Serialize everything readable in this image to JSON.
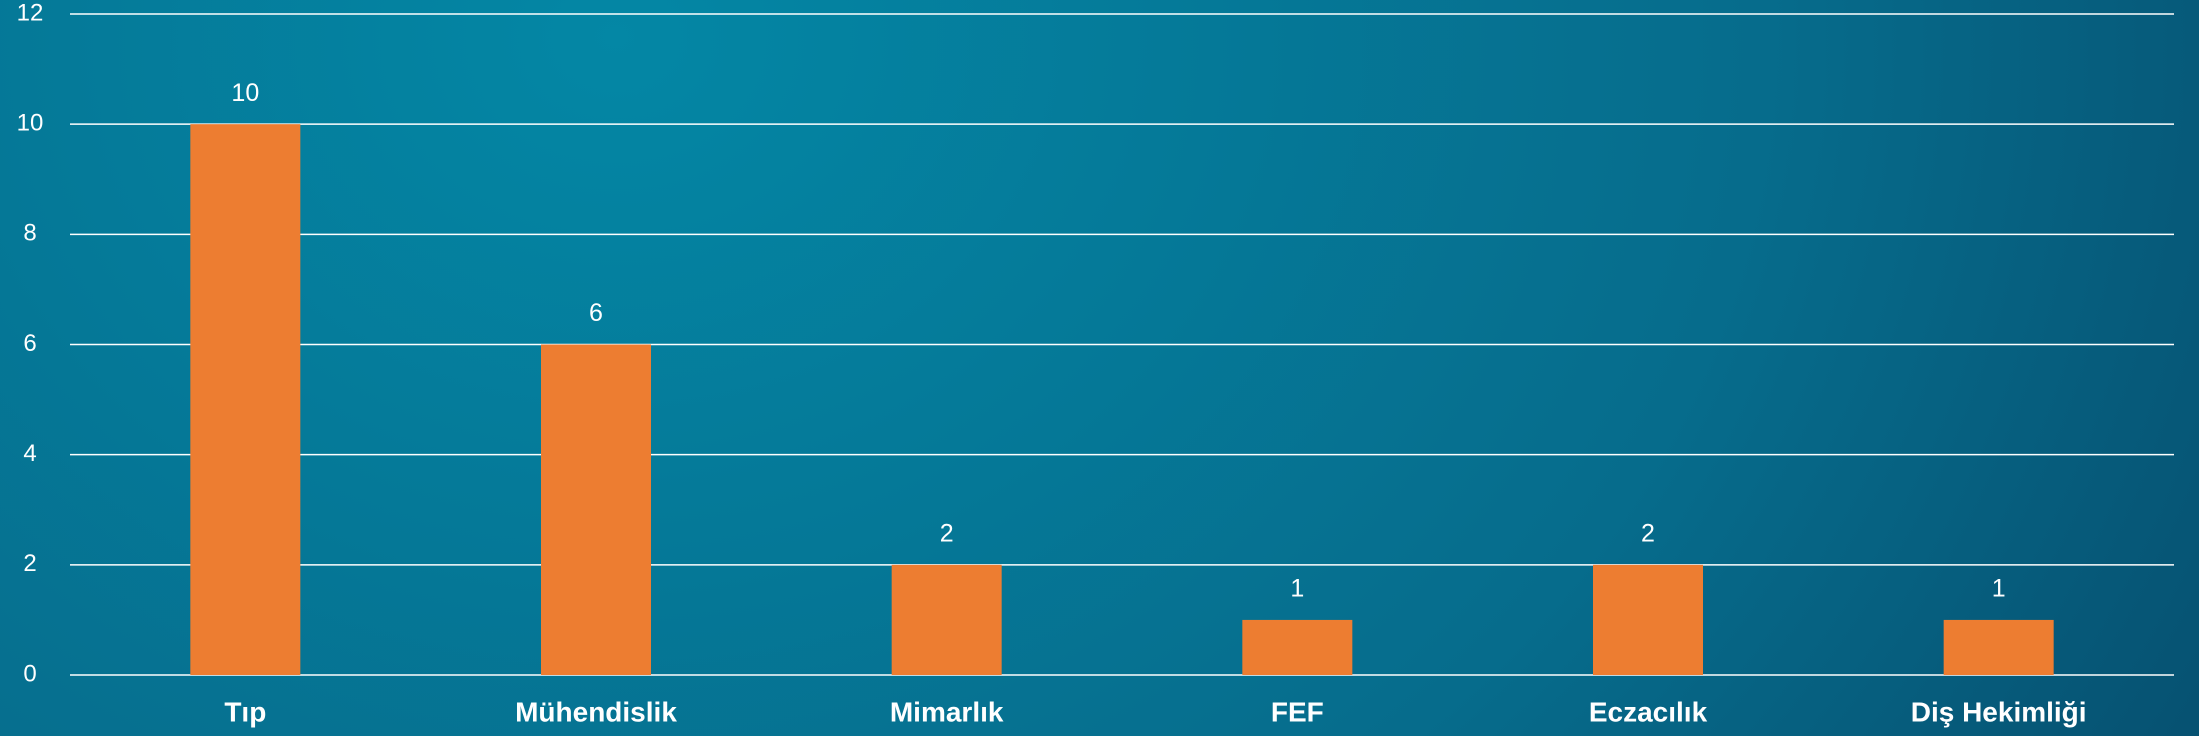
{
  "chart_data": {
    "type": "bar",
    "categories": [
      "Tıp",
      "Mühendislik",
      "Mimarlık",
      "FEF",
      "Eczacılık",
      "Diş Hekimliği"
    ],
    "values": [
      10,
      6,
      2,
      1,
      2,
      1
    ],
    "color": "#ed7d31",
    "ylim": [
      0,
      12
    ],
    "yticks": [
      0,
      2,
      4,
      6,
      8,
      10,
      12
    ],
    "grid": true
  }
}
